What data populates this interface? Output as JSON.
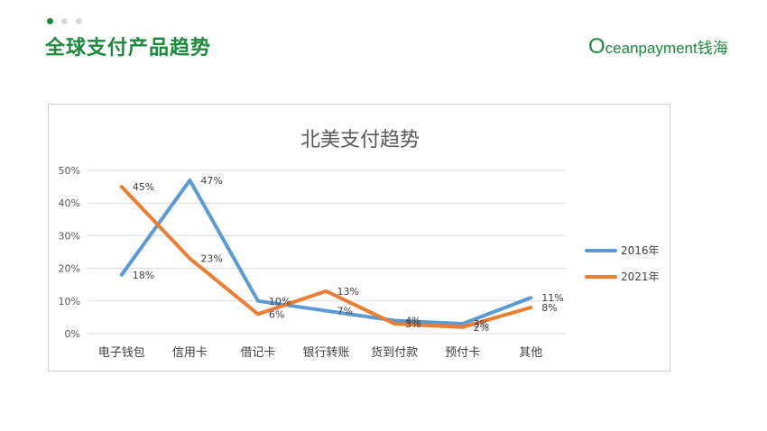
{
  "slide": {
    "title": "全球支付产品趋势",
    "logo_o": "O",
    "logo_rest": "ceanpayment",
    "logo_cn": "钱海"
  },
  "colors": {
    "brand": "#1c8a3c",
    "series_2016": "#5b9bd5",
    "series_2021": "#ed7d31",
    "grid": "#d9d9d9"
  },
  "chart_data": {
    "type": "line",
    "title": "北美支付趋势",
    "categories": [
      "电子钱包",
      "信用卡",
      "借记卡",
      "银行转账",
      "货到付款",
      "预付卡",
      "其他"
    ],
    "series": [
      {
        "name": "2016年",
        "values": [
          18,
          47,
          10,
          7,
          4,
          3,
          11
        ],
        "labels": [
          "18%",
          "47%",
          "10%",
          "7%",
          "4%",
          "3%",
          "11%"
        ]
      },
      {
        "name": "2021年",
        "values": [
          45,
          23,
          6,
          13,
          3,
          2,
          8
        ],
        "labels": [
          "45%",
          "23%",
          "6%",
          "13%",
          "3%",
          "2%",
          "8%"
        ]
      }
    ],
    "yticks": [
      "0%",
      "10%",
      "20%",
      "30%",
      "40%",
      "50%"
    ],
    "ylim": [
      0,
      50
    ],
    "grid": true,
    "legend": "right"
  }
}
